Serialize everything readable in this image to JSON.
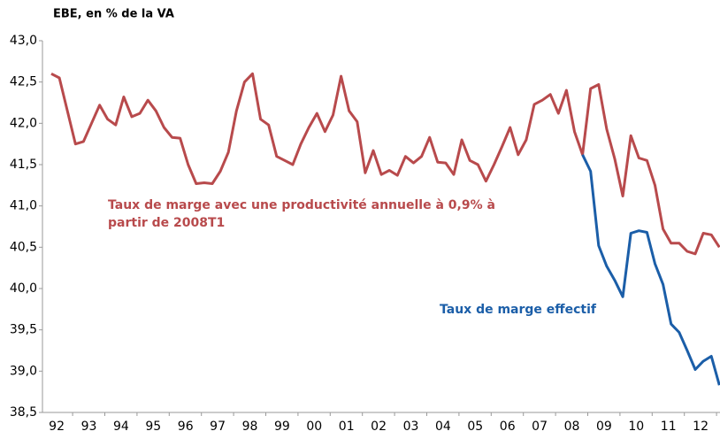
{
  "chart_data": {
    "type": "line",
    "title": "EBE, en % de la VA",
    "categories": [
      null,
      "92",
      null,
      null,
      null,
      "93",
      null,
      null,
      null,
      "94",
      null,
      null,
      null,
      "95",
      null,
      null,
      null,
      "96",
      null,
      null,
      null,
      "97",
      null,
      null,
      null,
      "98",
      null,
      null,
      null,
      "99",
      null,
      null,
      null,
      "00",
      null,
      null,
      null,
      "01",
      null,
      null,
      null,
      "02",
      null,
      null,
      null,
      "03",
      null,
      null,
      null,
      "04",
      null,
      null,
      null,
      "05",
      null,
      null,
      null,
      "06",
      null,
      null,
      null,
      "07",
      null,
      null,
      null,
      "08",
      null,
      null,
      null,
      "09",
      null,
      null,
      null,
      "10",
      null,
      null,
      null,
      "11",
      null,
      null,
      null,
      "12",
      null,
      null
    ],
    "series": [
      {
        "name": "Taux de marge avec une productivité annuelle à 0,9% à partir de 2008T1",
        "color": "#b84a4c",
        "values": [
          42.6,
          42.55,
          42.15,
          41.75,
          41.78,
          42.0,
          42.22,
          42.05,
          41.98,
          42.32,
          42.08,
          42.12,
          42.28,
          42.15,
          41.95,
          41.83,
          41.82,
          41.5,
          41.27,
          41.28,
          41.27,
          41.42,
          41.65,
          42.15,
          42.5,
          42.6,
          42.05,
          41.98,
          41.6,
          41.55,
          41.5,
          41.75,
          41.95,
          42.12,
          41.9,
          42.1,
          42.57,
          42.15,
          42.02,
          41.4,
          41.67,
          41.38,
          41.43,
          41.37,
          41.6,
          41.52,
          41.6,
          41.83,
          41.53,
          41.52,
          41.38,
          41.8,
          41.55,
          41.5,
          41.3,
          41.5,
          41.72,
          41.95,
          41.62,
          41.8,
          42.23,
          42.28,
          42.35,
          42.12,
          42.4,
          41.9,
          41.62,
          42.42,
          42.47,
          41.93,
          41.57,
          41.12,
          41.85,
          41.58,
          41.55,
          41.25,
          40.72,
          40.55,
          40.55,
          40.45,
          40.42,
          40.67,
          40.65,
          40.5
        ]
      },
      {
        "name": "Taux de marge effectif",
        "color": "#1b5ea8",
        "values": [
          null,
          null,
          null,
          null,
          null,
          null,
          null,
          null,
          null,
          null,
          null,
          null,
          null,
          null,
          null,
          null,
          null,
          null,
          null,
          null,
          null,
          null,
          null,
          null,
          null,
          null,
          null,
          null,
          null,
          null,
          null,
          null,
          null,
          null,
          null,
          null,
          null,
          null,
          null,
          null,
          null,
          null,
          null,
          null,
          null,
          null,
          null,
          null,
          null,
          null,
          null,
          null,
          null,
          null,
          null,
          null,
          null,
          null,
          null,
          null,
          null,
          null,
          null,
          null,
          null,
          null,
          41.62,
          41.42,
          40.52,
          40.27,
          40.1,
          39.9,
          40.67,
          40.7,
          40.68,
          40.3,
          40.05,
          39.57,
          39.47,
          39.25,
          39.02,
          39.12,
          39.18,
          38.83
        ]
      }
    ],
    "ylim": [
      38.5,
      43.0
    ],
    "yticks": [
      {
        "value": 38.5,
        "label": "38,5"
      },
      {
        "value": 39.0,
        "label": "39,0"
      },
      {
        "value": 39.5,
        "label": "39,5"
      },
      {
        "value": 40.0,
        "label": "40,0"
      },
      {
        "value": 40.5,
        "label": "40,5"
      },
      {
        "value": 41.0,
        "label": "41,0"
      },
      {
        "value": 41.5,
        "label": "41,5"
      },
      {
        "value": 42.0,
        "label": "42,0"
      },
      {
        "value": 42.5,
        "label": "42,5"
      },
      {
        "value": 43.0,
        "label": "43,0"
      }
    ],
    "grid": false
  }
}
